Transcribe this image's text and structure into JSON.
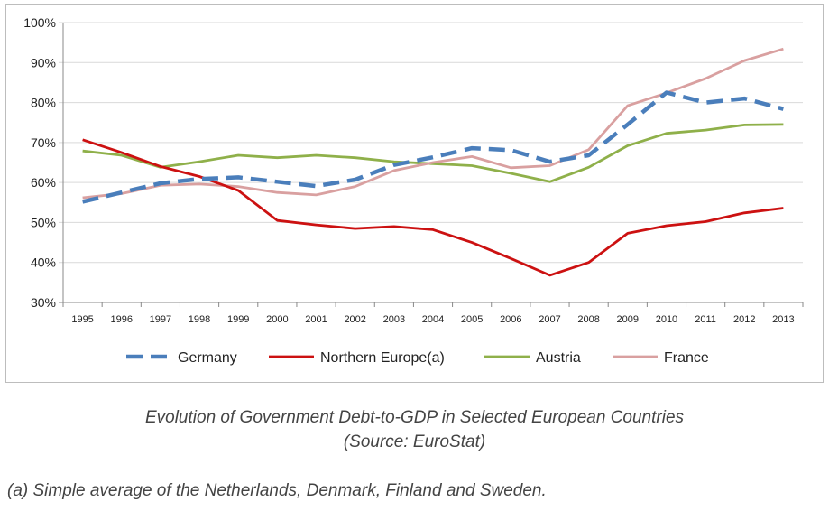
{
  "chart_data": {
    "type": "line",
    "x": [
      "1995",
      "1996",
      "1997",
      "1998",
      "1999",
      "2000",
      "2001",
      "2002",
      "2003",
      "2004",
      "2005",
      "2006",
      "2007",
      "2008",
      "2009",
      "2010",
      "2011",
      "2012",
      "2013"
    ],
    "ylim": [
      30,
      100
    ],
    "yticks": [
      "30%",
      "40%",
      "50%",
      "60%",
      "70%",
      "80%",
      "90%",
      "100%"
    ],
    "ytick_values": [
      30,
      40,
      50,
      60,
      70,
      80,
      90,
      100
    ],
    "grid": "horizontal",
    "legend_position": "bottom",
    "series": [
      {
        "name": "Germany",
        "color": "#4a7ebb",
        "dash": true,
        "values": [
          55.2,
          57.5,
          59.8,
          60.9,
          61.3,
          60.2,
          59.1,
          60.7,
          64.4,
          66.3,
          68.6,
          68.1,
          65.2,
          66.8,
          74.5,
          82.5,
          80.0,
          81.0,
          78.4
        ]
      },
      {
        "name": "Northern Europe(a)",
        "color": "#cc1111",
        "dash": false,
        "values": [
          70.7,
          67.5,
          64.0,
          61.5,
          58.0,
          50.5,
          49.4,
          48.5,
          49.0,
          48.2,
          45.0,
          41.0,
          36.8,
          40.0,
          47.3,
          49.2,
          50.2,
          52.4,
          53.6
        ]
      },
      {
        "name": "Austria",
        "color": "#8fb04a",
        "dash": false,
        "values": [
          67.9,
          66.8,
          63.8,
          65.2,
          66.8,
          66.2,
          66.8,
          66.2,
          65.2,
          64.7,
          64.2,
          62.3,
          60.2,
          63.8,
          69.2,
          72.3,
          73.1,
          74.4,
          74.5
        ]
      },
      {
        "name": "France",
        "color": "#d9a0a0",
        "dash": false,
        "values": [
          56.2,
          57.2,
          59.3,
          59.6,
          59.0,
          57.5,
          56.9,
          59.0,
          63.0,
          65.0,
          66.5,
          63.7,
          64.2,
          68.2,
          79.2,
          82.4,
          86.0,
          90.5,
          93.4
        ]
      }
    ]
  },
  "caption": {
    "line1": "Evolution of Government Debt-to-GDP in Selected European Countries",
    "line2": "(Source: EuroStat)"
  },
  "footnote": "(a) Simple average of the Netherlands, Denmark, Finland and Sweden."
}
